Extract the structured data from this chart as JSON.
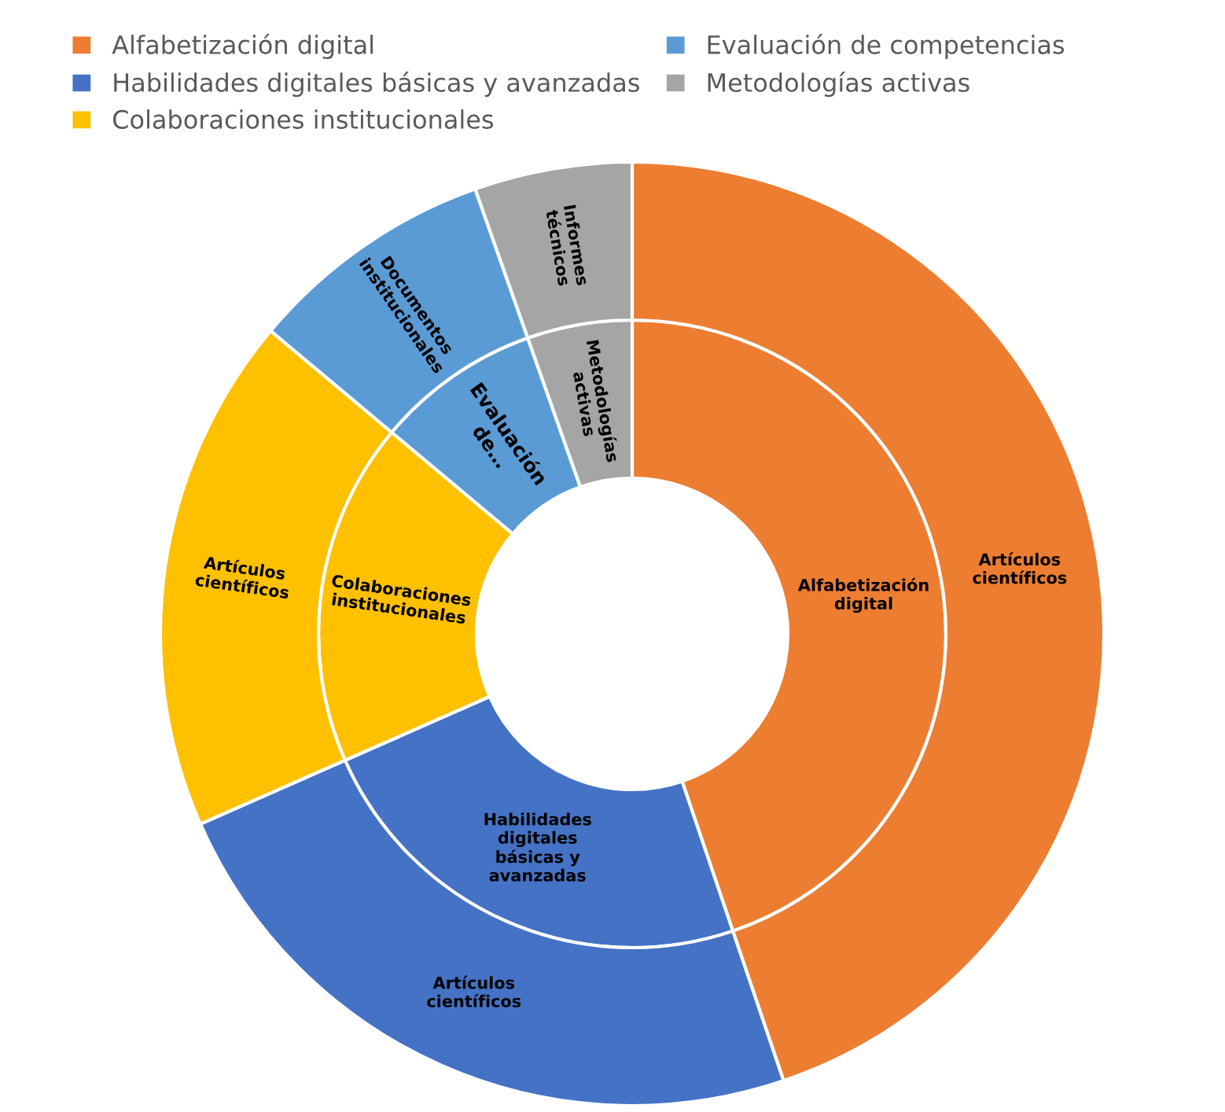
{
  "chart_data": {
    "type": "donut",
    "categories": [
      "Alfabetización digital",
      "Habilidades digitales básicas y avanzadas",
      "Colaboraciones institucionales",
      "Evaluación de competencias",
      "Metodologías activas"
    ],
    "colors": [
      "#ed7d31",
      "#4472c4",
      "#ffc000",
      "#5b9bd5",
      "#a5a5a5"
    ],
    "series": [
      {
        "values": [
          44.8,
          23.6,
          17.7,
          8.5,
          5.4
        ]
      },
      {
        "values": [
          44.8,
          23.6,
          17.7,
          8.5,
          5.4
        ]
      }
    ],
    "annotations": [
      {
        "text": "Alfabetización digital",
        "x": "Alfabetización digital"
      },
      {
        "text": "Habilidades digitales básicas y avanzadas",
        "x": "Habilidades digitales básicas y avanzadas"
      },
      {
        "text": "Colaboraciones institucionales",
        "x": "Colaboraciones institucionales"
      },
      {
        "text": "Evaluación de…",
        "x": "Evaluación de competencias"
      },
      {
        "text": "Metodologías activas",
        "x": "Metodologías activas"
      },
      {
        "text": "Artículos científicos",
        "x": "Alfabetización digital"
      },
      {
        "text": "Artículos científicos",
        "x": "Habilidades digitales básicas y avanzadas"
      },
      {
        "text": "Artículos científicos",
        "x": "Colaboraciones institucionales"
      },
      {
        "text": "Documentos institucionales",
        "x": "Evaluación de competencias"
      },
      {
        "text": "Informes técnicos",
        "x": "Metodologías activas"
      }
    ],
    "legend": "top"
  }
}
